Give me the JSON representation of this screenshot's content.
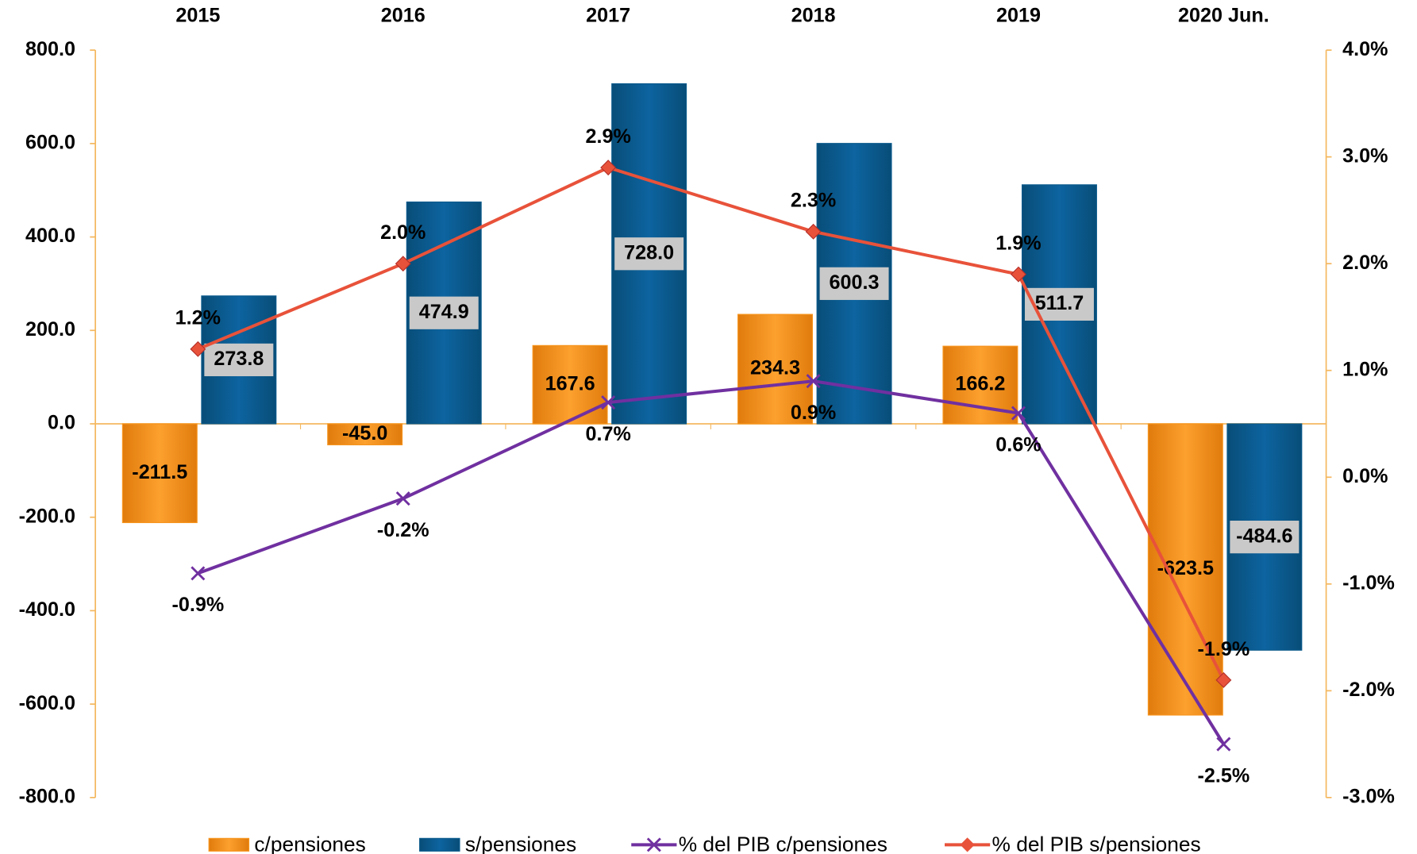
{
  "chart_data": {
    "type": "bar",
    "categories": [
      "2015",
      "2016",
      "2017",
      "2018",
      "2019",
      "2020 Jun."
    ],
    "series": [
      {
        "name": "c/pensiones",
        "type": "bar",
        "color": "#f7941d",
        "values": [
          -211.5,
          -45,
          167.6,
          234.3,
          166.2,
          -623.5
        ],
        "value_labels": [
          "-211.5",
          "-45.0",
          "167.6",
          "234.3",
          "166.2",
          "-623.5"
        ]
      },
      {
        "name": "s/pensiones",
        "type": "bar",
        "color": "#0a5a8c",
        "values": [
          273.8,
          474.9,
          728,
          600.3,
          511.7,
          -484.6
        ],
        "value_labels": [
          "273.8",
          "474.9",
          "728.0",
          "600.3",
          "511.7",
          "-484.6"
        ]
      },
      {
        "name": "% del PIB c/pensiones",
        "type": "line",
        "axis": "y2",
        "color": "#7030a0",
        "values": [
          -0.9,
          -0.2,
          0.7,
          0.9,
          0.6,
          -2.5
        ],
        "value_labels": [
          "-0.9%",
          "-0.2%",
          "0.7%",
          "0.9%",
          "0.6%",
          "-2.5%"
        ]
      },
      {
        "name": "% del PIB s/pensiones",
        "type": "line",
        "axis": "y2",
        "color": "#e8523a",
        "values": [
          1.2,
          2.0,
          2.9,
          2.3,
          1.9,
          -1.9
        ],
        "value_labels": [
          "1.2%",
          "2.0%",
          "2.9%",
          "2.3%",
          "1.9%",
          "-1.9%"
        ]
      }
    ],
    "ylim": [
      -800,
      800
    ],
    "yticks": [
      {
        "value": -800,
        "label": "-800.0"
      },
      {
        "value": -600,
        "label": "-600.0"
      },
      {
        "value": -400,
        "label": "-400.0"
      },
      {
        "value": -200,
        "label": "-200.0"
      },
      {
        "value": 0,
        "label": "0.0"
      },
      {
        "value": 200,
        "label": "200.0"
      },
      {
        "value": 400,
        "label": "400.0"
      },
      {
        "value": 600,
        "label": "600.0"
      },
      {
        "value": 800,
        "label": "800.0"
      }
    ],
    "y2lim": [
      -3,
      4
    ],
    "y2ticks": [
      {
        "value": -3,
        "label": "-3.0%"
      },
      {
        "value": -2,
        "label": "-2.0%"
      },
      {
        "value": -1,
        "label": "-1.0%"
      },
      {
        "value": 0,
        "label": "0.0%"
      },
      {
        "value": 1,
        "label": "1.0%"
      },
      {
        "value": 2,
        "label": "2.0%"
      },
      {
        "value": 3,
        "label": "3.0%"
      },
      {
        "value": 4,
        "label": "4.0%"
      }
    ],
    "legend": "bottom"
  }
}
